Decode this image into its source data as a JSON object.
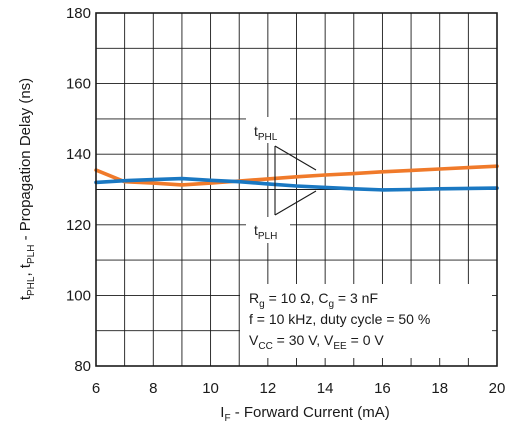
{
  "chart_data": {
    "type": "line",
    "xlim": [
      6,
      20
    ],
    "ylim": [
      80,
      180
    ],
    "x_ticks": [
      "6",
      "8",
      "10",
      "12",
      "14",
      "16",
      "18",
      "20"
    ],
    "y_ticks": [
      "80",
      "100",
      "120",
      "140",
      "160",
      "180"
    ],
    "grid": true,
    "xlabel": {
      "main": "I",
      "sub": "F",
      "rest": " - Forward Current (mA)"
    },
    "ylabel": {
      "t1": "t",
      "s1": "PHL",
      "mid": ", t",
      "s2": "PLH",
      "rest": " - Propagation Delay (ns)"
    },
    "series": [
      {
        "name": "tPHL",
        "color": "#f07a2a",
        "x": [
          6,
          7,
          8,
          9,
          10,
          11,
          12,
          13,
          14,
          15,
          16,
          17,
          18,
          19,
          20
        ],
        "y": [
          135.5,
          132.2,
          131.8,
          131.3,
          131.8,
          132.4,
          133.0,
          133.6,
          134.1,
          134.5,
          135.0,
          135.4,
          135.8,
          136.2,
          136.6
        ]
      },
      {
        "name": "tPLH",
        "color": "#1a78c2",
        "x": [
          6,
          7,
          8,
          9,
          10,
          11,
          12,
          13,
          14,
          15,
          16,
          17,
          18,
          19,
          20
        ],
        "y": [
          132.0,
          132.5,
          132.8,
          133.1,
          132.6,
          132.2,
          131.6,
          131.0,
          130.6,
          130.2,
          129.9,
          130.0,
          130.2,
          130.3,
          130.4
        ]
      }
    ],
    "annotations": {
      "tphl": {
        "t": "t",
        "sub": "PHL"
      },
      "tplh": {
        "t": "t",
        "sub": "PLH"
      },
      "conditions": [
        {
          "parts": [
            [
              "R",
              ""
            ],
            [
              "g",
              "sub"
            ],
            [
              " = 10 Ω, C",
              ""
            ],
            [
              "g",
              "sub"
            ],
            [
              " = 3 nF",
              ""
            ]
          ]
        },
        {
          "parts": [
            [
              "f = 10 kHz, duty cycle = 50 %",
              ""
            ]
          ]
        },
        {
          "parts": [
            [
              "V",
              ""
            ],
            [
              "CC",
              "sub"
            ],
            [
              " = 30 V, V",
              ""
            ],
            [
              "EE",
              "sub"
            ],
            [
              " = 0 V",
              ""
            ]
          ]
        }
      ]
    }
  }
}
